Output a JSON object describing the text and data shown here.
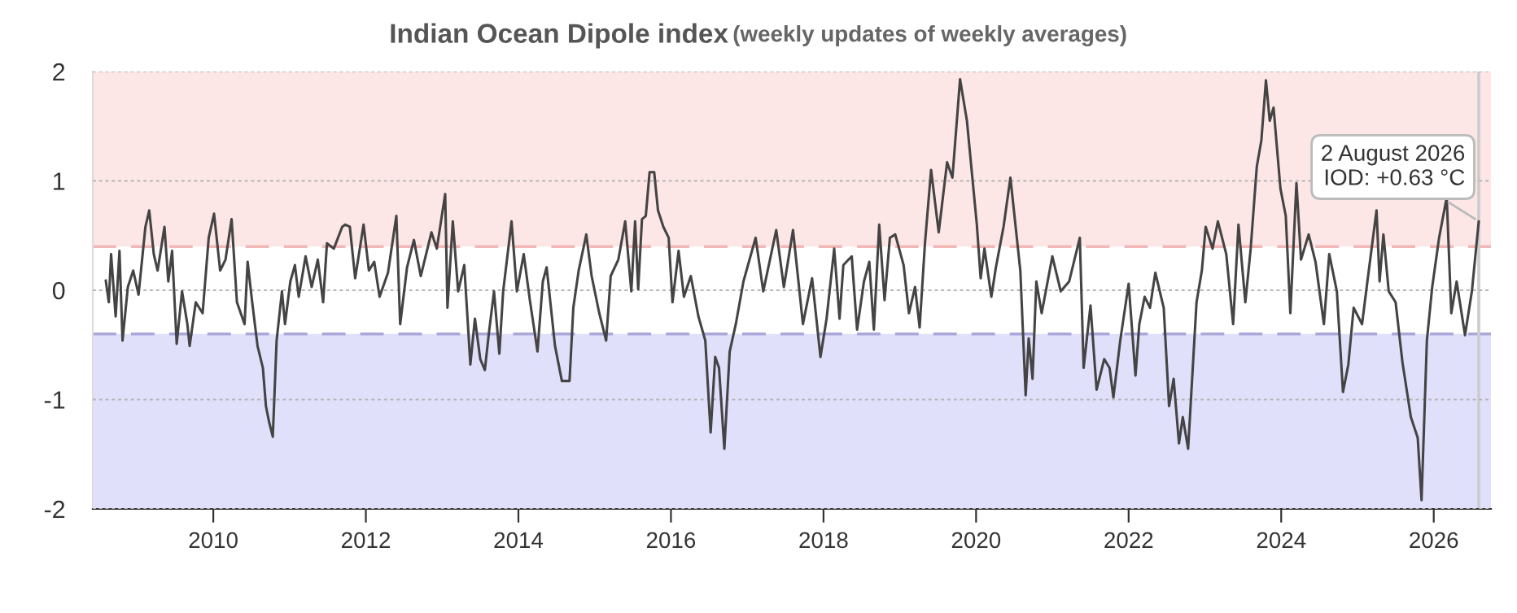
{
  "chart_data": {
    "type": "line",
    "title": "Indian Ocean Dipole index",
    "subtitle": "(weekly updates of weekly averages)",
    "x": [
      2008.59,
      2008.63,
      2008.66,
      2008.72,
      2008.77,
      2008.81,
      2008.88,
      2008.95,
      2009.02,
      2009.11,
      2009.16,
      2009.22,
      2009.27,
      2009.36,
      2009.41,
      2009.46,
      2009.52,
      2009.59,
      2009.66,
      2009.69,
      2009.77,
      2009.86,
      2009.94,
      2010.01,
      2010.09,
      2010.16,
      2010.24,
      2010.31,
      2010.41,
      2010.45,
      2010.51,
      2010.58,
      2010.65,
      2010.69,
      2010.73,
      2010.78,
      2010.83,
      2010.9,
      2010.94,
      2011.01,
      2011.07,
      2011.12,
      2011.21,
      2011.29,
      2011.37,
      2011.44,
      2011.49,
      2011.58,
      2011.69,
      2011.73,
      2011.79,
      2011.86,
      2011.97,
      2012.04,
      2012.11,
      2012.18,
      2012.29,
      2012.4,
      2012.45,
      2012.54,
      2012.63,
      2012.72,
      2012.86,
      2012.93,
      2013.04,
      2013.07,
      2013.14,
      2013.21,
      2013.29,
      2013.37,
      2013.43,
      2013.5,
      2013.56,
      2013.61,
      2013.68,
      2013.75,
      2013.8,
      2013.91,
      2013.98,
      2014.07,
      2014.15,
      2014.25,
      2014.32,
      2014.37,
      2014.48,
      2014.57,
      2014.67,
      2014.72,
      2014.79,
      2014.89,
      2014.96,
      2015.06,
      2015.15,
      2015.21,
      2015.31,
      2015.4,
      2015.48,
      2015.53,
      2015.57,
      2015.62,
      2015.67,
      2015.72,
      2015.78,
      2015.83,
      2015.9,
      2015.97,
      2016.02,
      2016.1,
      2016.17,
      2016.26,
      2016.36,
      2016.45,
      2016.52,
      2016.58,
      2016.63,
      2016.7,
      2016.77,
      2016.85,
      2016.95,
      2017.11,
      2017.21,
      2017.38,
      2017.48,
      2017.6,
      2017.73,
      2017.85,
      2017.96,
      2018.04,
      2018.14,
      2018.21,
      2018.26,
      2018.37,
      2018.44,
      2018.53,
      2018.6,
      2018.66,
      2018.73,
      2018.8,
      2018.87,
      2018.94,
      2019.05,
      2019.12,
      2019.2,
      2019.26,
      2019.33,
      2019.41,
      2019.51,
      2019.62,
      2019.69,
      2019.79,
      2019.88,
      2020.01,
      2020.06,
      2020.11,
      2020.2,
      2020.26,
      2020.36,
      2020.45,
      2020.58,
      2020.65,
      2020.69,
      2020.74,
      2020.79,
      2020.86,
      2021.0,
      2021.11,
      2021.22,
      2021.36,
      2021.41,
      2021.5,
      2021.58,
      2021.68,
      2021.75,
      2021.8,
      2021.89,
      2022.0,
      2022.09,
      2022.14,
      2022.21,
      2022.28,
      2022.35,
      2022.46,
      2022.53,
      2022.59,
      2022.66,
      2022.71,
      2022.78,
      2022.89,
      2022.96,
      2023.01,
      2023.1,
      2023.17,
      2023.28,
      2023.37,
      2023.44,
      2023.53,
      2023.6,
      2023.68,
      2023.74,
      2023.8,
      2023.85,
      2023.9,
      2023.99,
      2024.06,
      2024.12,
      2024.2,
      2024.26,
      2024.36,
      2024.45,
      2024.56,
      2024.63,
      2024.73,
      2024.81,
      2024.88,
      2024.95,
      2025.06,
      2025.13,
      2025.25,
      2025.29,
      2025.34,
      2025.41,
      2025.5,
      2025.59,
      2025.7,
      2025.79,
      2025.84,
      2025.91,
      2025.98,
      2026.07,
      2026.17,
      2026.23,
      2026.3,
      2026.41,
      2026.5,
      2026.59
    ],
    "series": [
      {
        "color": "#444444",
        "values": [
          0.09,
          -0.11,
          0.33,
          -0.24,
          0.36,
          -0.46,
          0.03,
          0.18,
          -0.04,
          0.58,
          0.73,
          0.33,
          0.18,
          0.58,
          0.08,
          0.36,
          -0.49,
          -0.01,
          -0.31,
          -0.51,
          -0.11,
          -0.21,
          0.48,
          0.7,
          0.18,
          0.28,
          0.65,
          -0.11,
          -0.31,
          0.26,
          -0.11,
          -0.51,
          -0.71,
          -1.06,
          -1.2,
          -1.34,
          -0.46,
          -0.01,
          -0.31,
          0.08,
          0.23,
          -0.06,
          0.31,
          0.03,
          0.28,
          -0.11,
          0.43,
          0.38,
          0.58,
          0.6,
          0.58,
          0.11,
          0.6,
          0.18,
          0.26,
          -0.06,
          0.16,
          0.68,
          -0.31,
          0.21,
          0.46,
          0.13,
          0.53,
          0.38,
          0.88,
          -0.16,
          0.63,
          -0.01,
          0.23,
          -0.68,
          -0.26,
          -0.63,
          -0.73,
          -0.41,
          -0.01,
          -0.58,
          -0.01,
          0.63,
          -0.01,
          0.33,
          -0.09,
          -0.56,
          0.08,
          0.21,
          -0.51,
          -0.83,
          -0.83,
          -0.16,
          0.18,
          0.51,
          0.13,
          -0.21,
          -0.46,
          0.13,
          0.28,
          0.63,
          -0.01,
          0.63,
          0.01,
          0.65,
          0.68,
          1.08,
          1.08,
          0.73,
          0.58,
          0.48,
          -0.11,
          0.36,
          -0.06,
          0.13,
          -0.24,
          -0.46,
          -1.3,
          -0.61,
          -0.71,
          -1.45,
          -0.56,
          -0.31,
          0.08,
          0.48,
          -0.01,
          0.55,
          0.03,
          0.55,
          -0.31,
          0.11,
          -0.61,
          -0.26,
          0.38,
          -0.26,
          0.23,
          0.31,
          -0.36,
          0.08,
          0.26,
          -0.36,
          0.6,
          -0.09,
          0.48,
          0.51,
          0.23,
          -0.21,
          0.03,
          -0.34,
          0.43,
          1.1,
          0.53,
          1.17,
          1.03,
          1.93,
          1.55,
          0.6,
          0.11,
          0.38,
          -0.06,
          0.21,
          0.58,
          1.03,
          0.18,
          -0.96,
          -0.44,
          -0.81,
          0.08,
          -0.21,
          0.31,
          -0.01,
          0.08,
          0.48,
          -0.71,
          -0.14,
          -0.91,
          -0.63,
          -0.71,
          -0.98,
          -0.46,
          0.06,
          -0.78,
          -0.31,
          -0.06,
          -0.16,
          0.16,
          -0.16,
          -1.06,
          -0.81,
          -1.4,
          -1.16,
          -1.45,
          -0.11,
          0.18,
          0.58,
          0.38,
          0.63,
          0.33,
          -0.31,
          0.6,
          -0.11,
          0.38,
          1.13,
          1.37,
          1.92,
          1.55,
          1.67,
          0.93,
          0.68,
          -0.21,
          0.98,
          0.28,
          0.51,
          0.26,
          -0.31,
          0.33,
          -0.01,
          -0.93,
          -0.68,
          -0.16,
          -0.31,
          0.08,
          0.73,
          0.08,
          0.51,
          -0.01,
          -0.11,
          -0.66,
          -1.16,
          -1.35,
          -1.92,
          -0.46,
          0.03,
          0.48,
          0.85,
          -0.21,
          0.08,
          -0.41,
          -0.01,
          0.63
        ]
      }
    ],
    "xlim": [
      2008.42,
      2026.75
    ],
    "xticks": [
      2010,
      2012,
      2014,
      2016,
      2018,
      2020,
      2022,
      2024,
      2026
    ],
    "ylim": [
      -2,
      2
    ],
    "yticks": [
      -2,
      -1,
      0,
      1,
      2
    ],
    "grid": "y",
    "legend": false,
    "marker": "none",
    "line_style": "solid",
    "bands": [
      {
        "axis": "y",
        "from": 0.4,
        "to": 2,
        "color": "#fde6e6"
      },
      {
        "axis": "y",
        "from": -2,
        "to": -0.4,
        "color": "#e1e0fb"
      }
    ],
    "ref_lines": [
      {
        "axis": "y",
        "value": 0.4,
        "color": "#f2b8b8",
        "line_style": "dashed"
      },
      {
        "axis": "y",
        "value": -0.4,
        "color": "#a9a8d9",
        "line_style": "dashed"
      },
      {
        "axis": "x",
        "value": 2026.59,
        "color": "#cccccc",
        "line_style": "solid"
      }
    ],
    "annotations": [
      {
        "text": "2 August 2026\nIOD: +0.63 °C",
        "x": 2026.59,
        "y": 0.63
      }
    ]
  }
}
